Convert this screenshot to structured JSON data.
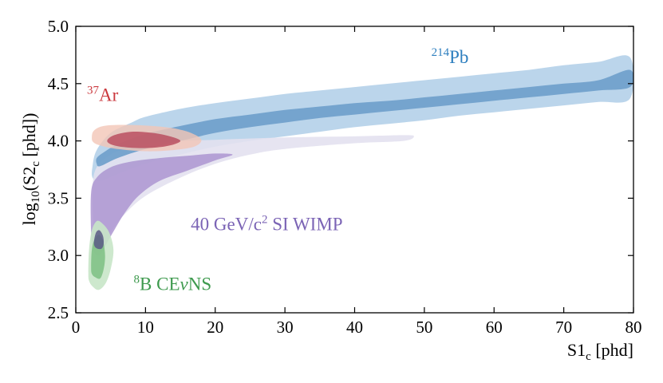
{
  "chart_data": {
    "type": "area",
    "xlabel": {
      "main": "S1",
      "sub": "c",
      "tail": " [phd]"
    },
    "ylabel": {
      "pre": "log",
      "pre_sub": "10",
      "mid": "(S2",
      "mid_sub": "c",
      "tail": " [phd])"
    },
    "xlim": [
      0,
      80
    ],
    "ylim": [
      2.5,
      5.0
    ],
    "x_ticks": [
      0,
      10,
      20,
      30,
      40,
      50,
      60,
      70,
      80
    ],
    "y_ticks": [
      2.5,
      3.0,
      3.5,
      4.0,
      4.5,
      5.0
    ],
    "grid": false,
    "series": [
      {
        "key": "pb214",
        "label_sup": "214",
        "label_text": "Pb",
        "label_at": [
          51,
          4.68
        ],
        "color": "#2e7fbf",
        "outer_color": "#b7d3ea",
        "inner_color": "#6f9fcb",
        "outer": [
          [
            2.4,
            3.78
          ],
          [
            3,
            3.92
          ],
          [
            5,
            4.07
          ],
          [
            8,
            4.16
          ],
          [
            10,
            4.21
          ],
          [
            15,
            4.28
          ],
          [
            20,
            4.33
          ],
          [
            25,
            4.37
          ],
          [
            30,
            4.41
          ],
          [
            35,
            4.44
          ],
          [
            40,
            4.47
          ],
          [
            45,
            4.5
          ],
          [
            50,
            4.53
          ],
          [
            55,
            4.56
          ],
          [
            60,
            4.59
          ],
          [
            65,
            4.62
          ],
          [
            70,
            4.66
          ],
          [
            75,
            4.69
          ],
          [
            79.5,
            4.73
          ],
          [
            79.5,
            4.37
          ],
          [
            75,
            4.34
          ],
          [
            70,
            4.31
          ],
          [
            65,
            4.28
          ],
          [
            60,
            4.25
          ],
          [
            55,
            4.22
          ],
          [
            50,
            4.18
          ],
          [
            45,
            4.15
          ],
          [
            40,
            4.12
          ],
          [
            35,
            4.08
          ],
          [
            30,
            4.04
          ],
          [
            25,
            4.0
          ],
          [
            20,
            3.95
          ],
          [
            15,
            3.88
          ],
          [
            10,
            3.8
          ],
          [
            6,
            3.71
          ],
          [
            3.5,
            3.65
          ],
          [
            2.4,
            3.68
          ]
        ],
        "inner": [
          [
            3,
            3.85
          ],
          [
            4,
            3.9
          ],
          [
            6,
            3.97
          ],
          [
            10,
            4.06
          ],
          [
            15,
            4.13
          ],
          [
            20,
            4.19
          ],
          [
            25,
            4.23
          ],
          [
            30,
            4.27
          ],
          [
            35,
            4.3
          ],
          [
            40,
            4.33
          ],
          [
            45,
            4.35
          ],
          [
            50,
            4.38
          ],
          [
            55,
            4.41
          ],
          [
            60,
            4.44
          ],
          [
            65,
            4.47
          ],
          [
            70,
            4.5
          ],
          [
            75,
            4.53
          ],
          [
            79.5,
            4.62
          ],
          [
            79.5,
            4.47
          ],
          [
            75,
            4.44
          ],
          [
            70,
            4.41
          ],
          [
            65,
            4.38
          ],
          [
            60,
            4.35
          ],
          [
            55,
            4.32
          ],
          [
            50,
            4.29
          ],
          [
            45,
            4.26
          ],
          [
            40,
            4.23
          ],
          [
            35,
            4.2
          ],
          [
            30,
            4.16
          ],
          [
            25,
            4.12
          ],
          [
            20,
            4.07
          ],
          [
            15,
            4.0
          ],
          [
            10,
            3.93
          ],
          [
            6,
            3.85
          ],
          [
            3.5,
            3.78
          ],
          [
            3,
            3.8
          ]
        ]
      },
      {
        "key": "wimp",
        "label_text": "40 GeV/c",
        "label_sup": "2",
        "label_tail": " SI WIMP",
        "label_at": [
          16.5,
          3.22
        ],
        "color": "#7b64b5",
        "outer_color": "#e3e1ef",
        "inner_color": "#a993cf",
        "outer": [
          [
            2.5,
            3.3
          ],
          [
            2.4,
            3.6
          ],
          [
            3,
            3.77
          ],
          [
            5,
            3.88
          ],
          [
            8,
            3.95
          ],
          [
            12,
            3.99
          ],
          [
            20,
            4.01
          ],
          [
            30,
            4.03
          ],
          [
            40,
            4.04
          ],
          [
            47,
            4.05
          ],
          [
            48.5,
            4.04
          ],
          [
            47,
            4.0
          ],
          [
            40,
            3.98
          ],
          [
            30,
            3.93
          ],
          [
            25,
            3.88
          ],
          [
            20,
            3.8
          ],
          [
            15,
            3.68
          ],
          [
            10,
            3.52
          ],
          [
            7,
            3.36
          ],
          [
            5,
            3.2
          ],
          [
            4,
            3.05
          ],
          [
            3.5,
            2.98
          ],
          [
            2.8,
            3.0
          ],
          [
            2.5,
            3.15
          ]
        ],
        "inner": [
          [
            2.2,
            3.2
          ],
          [
            2.2,
            3.55
          ],
          [
            3,
            3.68
          ],
          [
            5,
            3.77
          ],
          [
            8,
            3.82
          ],
          [
            12,
            3.85
          ],
          [
            16,
            3.87
          ],
          [
            20,
            3.89
          ],
          [
            22.5,
            3.88
          ],
          [
            20,
            3.83
          ],
          [
            16,
            3.74
          ],
          [
            12,
            3.65
          ],
          [
            9,
            3.52
          ],
          [
            7,
            3.37
          ],
          [
            5.5,
            3.22
          ],
          [
            4.2,
            3.08
          ],
          [
            3.3,
            3.0
          ],
          [
            2.5,
            3.05
          ]
        ]
      },
      {
        "key": "ar37",
        "label_sup": "37",
        "label_text": "Ar",
        "label_at": [
          1.6,
          4.35
        ],
        "color": "#cb3a3f",
        "outer_color": "#f2c6b7",
        "inner_color": "#b84a5d",
        "outer": [
          [
            2.3,
            4.03
          ],
          [
            2.6,
            4.09
          ],
          [
            4,
            4.13
          ],
          [
            7,
            4.14
          ],
          [
            11,
            4.13
          ],
          [
            14,
            4.11
          ],
          [
            16.5,
            4.07
          ],
          [
            18,
            4.01
          ],
          [
            17,
            3.95
          ],
          [
            14,
            3.92
          ],
          [
            10,
            3.91
          ],
          [
            6,
            3.93
          ],
          [
            3.5,
            3.96
          ],
          [
            2.5,
            3.99
          ]
        ],
        "inner": [
          [
            4.5,
            4.0
          ],
          [
            5.5,
            4.05
          ],
          [
            8,
            4.08
          ],
          [
            11,
            4.07
          ],
          [
            13.5,
            4.04
          ],
          [
            15,
            4.0
          ],
          [
            13.5,
            3.96
          ],
          [
            11,
            3.94
          ],
          [
            8,
            3.94
          ],
          [
            5.5,
            3.96
          ]
        ]
      },
      {
        "key": "b8",
        "label_sup": "8",
        "label_text": "B CE",
        "label_italic": "ν",
        "label_tail": "NS",
        "label_at": [
          8.3,
          2.7
        ],
        "color": "#3e9a4e",
        "outer_color": "#c8e6c8",
        "inner_color": "#7cbf83",
        "outer": [
          [
            1.8,
            2.85
          ],
          [
            1.9,
            3.05
          ],
          [
            2.3,
            3.22
          ],
          [
            3,
            3.3
          ],
          [
            3.8,
            3.28
          ],
          [
            4.8,
            3.2
          ],
          [
            5.4,
            3.05
          ],
          [
            5,
            2.88
          ],
          [
            4.3,
            2.76
          ],
          [
            3.3,
            2.7
          ],
          [
            2.4,
            2.73
          ],
          [
            1.9,
            2.78
          ]
        ],
        "inner": [
          [
            2.2,
            2.9
          ],
          [
            2.3,
            3.05
          ],
          [
            2.7,
            3.14
          ],
          [
            3.3,
            3.18
          ],
          [
            3.9,
            3.13
          ],
          [
            4.2,
            3.0
          ],
          [
            4,
            2.88
          ],
          [
            3.5,
            2.8
          ],
          [
            2.8,
            2.81
          ],
          [
            2.3,
            2.84
          ]
        ],
        "core_color": "#5c5a86",
        "core": [
          [
            2.6,
            3.12
          ],
          [
            2.9,
            3.2
          ],
          [
            3.4,
            3.22
          ],
          [
            3.9,
            3.17
          ],
          [
            4.0,
            3.1
          ],
          [
            3.7,
            3.06
          ],
          [
            3.1,
            3.06
          ],
          [
            2.7,
            3.08
          ]
        ]
      }
    ]
  }
}
